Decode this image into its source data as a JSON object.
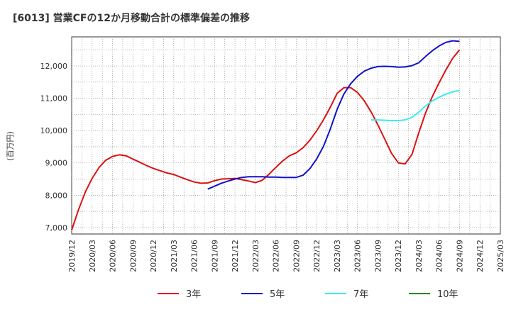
{
  "chart_data": {
    "type": "line",
    "title": "[6013]  営業CFの12か月移動合計の標準偏差の推移",
    "ylabel": "(百万円)",
    "xlabel": "",
    "ylim": [
      6800,
      12900
    ],
    "yticks": [
      7000,
      8000,
      9000,
      10000,
      11000,
      12000
    ],
    "ytick_labels": [
      "7,000",
      "8,000",
      "9,000",
      "10,000",
      "11,000",
      "12,000"
    ],
    "xticks": [
      "2019/12",
      "2020/03",
      "2020/06",
      "2020/09",
      "2020/12",
      "2021/03",
      "2021/06",
      "2021/09",
      "2021/12",
      "2022/03",
      "2022/06",
      "2022/09",
      "2022/12",
      "2023/03",
      "2023/06",
      "2023/09",
      "2023/12",
      "2024/03",
      "2024/06",
      "2024/09",
      "2024/12",
      "2025/03"
    ],
    "grid": true,
    "legend_position": "bottom",
    "series": [
      {
        "name": "3年",
        "color": "#dd1111",
        "x": [
          "2019/12",
          "2020/01",
          "2020/02",
          "2020/03",
          "2020/04",
          "2020/05",
          "2020/06",
          "2020/07",
          "2020/08",
          "2020/09",
          "2020/10",
          "2020/11",
          "2020/12",
          "2021/01",
          "2021/02",
          "2021/03",
          "2021/04",
          "2021/05",
          "2021/06",
          "2021/07",
          "2021/08",
          "2021/09",
          "2021/10",
          "2021/11",
          "2021/12",
          "2022/01",
          "2022/02",
          "2022/03",
          "2022/04",
          "2022/05",
          "2022/06",
          "2022/07",
          "2022/08",
          "2022/09",
          "2022/10",
          "2022/11",
          "2022/12",
          "2023/01",
          "2023/02",
          "2023/03",
          "2023/04",
          "2023/05",
          "2023/06",
          "2023/07",
          "2023/08",
          "2023/09",
          "2023/10",
          "2023/11",
          "2023/12",
          "2024/01",
          "2024/02",
          "2024/03",
          "2024/04",
          "2024/05",
          "2024/06",
          "2024/07",
          "2024/08",
          "2024/09"
        ],
        "values": [
          6920,
          7550,
          8100,
          8520,
          8850,
          9080,
          9200,
          9250,
          9220,
          9120,
          9020,
          8920,
          8830,
          8760,
          8690,
          8640,
          8560,
          8480,
          8410,
          8370,
          8380,
          8450,
          8500,
          8510,
          8520,
          8480,
          8440,
          8390,
          8460,
          8650,
          8860,
          9060,
          9220,
          9310,
          9470,
          9700,
          9990,
          10330,
          10720,
          11150,
          11330,
          11330,
          11180,
          10920,
          10580,
          10180,
          9740,
          9300,
          9000,
          8970,
          9260,
          9930,
          10540,
          11050,
          11480,
          11880,
          12240,
          12500
        ]
      },
      {
        "name": "5年",
        "color": "#1111cc",
        "x": [
          "2021/08",
          "2021/09",
          "2021/10",
          "2021/11",
          "2021/12",
          "2022/01",
          "2022/02",
          "2022/03",
          "2022/04",
          "2022/05",
          "2022/06",
          "2022/07",
          "2022/08",
          "2022/09",
          "2022/10",
          "2022/11",
          "2022/12",
          "2023/01",
          "2023/02",
          "2023/03",
          "2023/04",
          "2023/05",
          "2023/06",
          "2023/07",
          "2023/08",
          "2023/09",
          "2023/10",
          "2023/11",
          "2023/12",
          "2024/01",
          "2024/02",
          "2024/03",
          "2024/04",
          "2024/05",
          "2024/06",
          "2024/07",
          "2024/08",
          "2024/09"
        ],
        "values": [
          8190,
          8280,
          8370,
          8440,
          8500,
          8550,
          8570,
          8570,
          8570,
          8560,
          8560,
          8550,
          8550,
          8550,
          8620,
          8820,
          9120,
          9510,
          10040,
          10650,
          11130,
          11450,
          11680,
          11840,
          11930,
          11980,
          11990,
          11980,
          11960,
          11970,
          12010,
          12100,
          12290,
          12470,
          12620,
          12730,
          12780,
          12760
        ]
      },
      {
        "name": "7年",
        "color": "#33eeee",
        "x": [
          "2023/08",
          "2023/09",
          "2023/10",
          "2023/11",
          "2023/12",
          "2024/01",
          "2024/02",
          "2024/03",
          "2024/04",
          "2024/05",
          "2024/06",
          "2024/07",
          "2024/08",
          "2024/09"
        ],
        "values": [
          10330,
          10330,
          10320,
          10310,
          10310,
          10330,
          10410,
          10570,
          10760,
          10920,
          11030,
          11130,
          11200,
          11240
        ]
      },
      {
        "name": "10年",
        "color": "#228822",
        "x": [],
        "values": []
      }
    ]
  }
}
